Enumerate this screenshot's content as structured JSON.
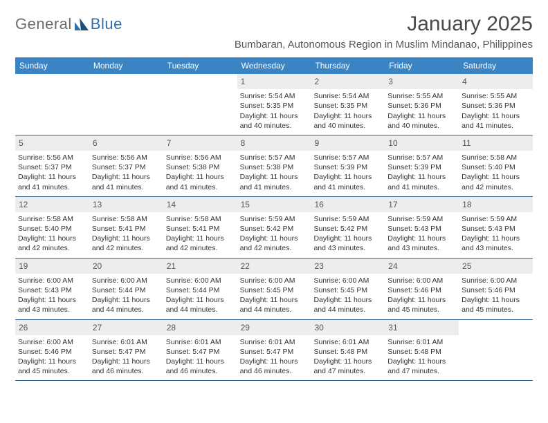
{
  "brand": {
    "general": "General",
    "blue": "Blue"
  },
  "title": "January 2025",
  "location": "Bumbaran, Autonomous Region in Muslim Mindanao, Philippines",
  "colors": {
    "header_bg": "#3a84c4",
    "header_text": "#ffffff",
    "daynum_bg": "#ededed",
    "week_border": "#2f5f8f",
    "logo_gray": "#6b6b6b",
    "logo_blue": "#2f6ea8",
    "text": "#333333"
  },
  "weekdays": [
    "Sunday",
    "Monday",
    "Tuesday",
    "Wednesday",
    "Thursday",
    "Friday",
    "Saturday"
  ],
  "weeks": [
    [
      null,
      null,
      null,
      {
        "n": "1",
        "sr": "Sunrise: 5:54 AM",
        "ss": "Sunset: 5:35 PM",
        "dl": "Daylight: 11 hours and 40 minutes."
      },
      {
        "n": "2",
        "sr": "Sunrise: 5:54 AM",
        "ss": "Sunset: 5:35 PM",
        "dl": "Daylight: 11 hours and 40 minutes."
      },
      {
        "n": "3",
        "sr": "Sunrise: 5:55 AM",
        "ss": "Sunset: 5:36 PM",
        "dl": "Daylight: 11 hours and 40 minutes."
      },
      {
        "n": "4",
        "sr": "Sunrise: 5:55 AM",
        "ss": "Sunset: 5:36 PM",
        "dl": "Daylight: 11 hours and 41 minutes."
      }
    ],
    [
      {
        "n": "5",
        "sr": "Sunrise: 5:56 AM",
        "ss": "Sunset: 5:37 PM",
        "dl": "Daylight: 11 hours and 41 minutes."
      },
      {
        "n": "6",
        "sr": "Sunrise: 5:56 AM",
        "ss": "Sunset: 5:37 PM",
        "dl": "Daylight: 11 hours and 41 minutes."
      },
      {
        "n": "7",
        "sr": "Sunrise: 5:56 AM",
        "ss": "Sunset: 5:38 PM",
        "dl": "Daylight: 11 hours and 41 minutes."
      },
      {
        "n": "8",
        "sr": "Sunrise: 5:57 AM",
        "ss": "Sunset: 5:38 PM",
        "dl": "Daylight: 11 hours and 41 minutes."
      },
      {
        "n": "9",
        "sr": "Sunrise: 5:57 AM",
        "ss": "Sunset: 5:39 PM",
        "dl": "Daylight: 11 hours and 41 minutes."
      },
      {
        "n": "10",
        "sr": "Sunrise: 5:57 AM",
        "ss": "Sunset: 5:39 PM",
        "dl": "Daylight: 11 hours and 41 minutes."
      },
      {
        "n": "11",
        "sr": "Sunrise: 5:58 AM",
        "ss": "Sunset: 5:40 PM",
        "dl": "Daylight: 11 hours and 42 minutes."
      }
    ],
    [
      {
        "n": "12",
        "sr": "Sunrise: 5:58 AM",
        "ss": "Sunset: 5:40 PM",
        "dl": "Daylight: 11 hours and 42 minutes."
      },
      {
        "n": "13",
        "sr": "Sunrise: 5:58 AM",
        "ss": "Sunset: 5:41 PM",
        "dl": "Daylight: 11 hours and 42 minutes."
      },
      {
        "n": "14",
        "sr": "Sunrise: 5:58 AM",
        "ss": "Sunset: 5:41 PM",
        "dl": "Daylight: 11 hours and 42 minutes."
      },
      {
        "n": "15",
        "sr": "Sunrise: 5:59 AM",
        "ss": "Sunset: 5:42 PM",
        "dl": "Daylight: 11 hours and 42 minutes."
      },
      {
        "n": "16",
        "sr": "Sunrise: 5:59 AM",
        "ss": "Sunset: 5:42 PM",
        "dl": "Daylight: 11 hours and 43 minutes."
      },
      {
        "n": "17",
        "sr": "Sunrise: 5:59 AM",
        "ss": "Sunset: 5:43 PM",
        "dl": "Daylight: 11 hours and 43 minutes."
      },
      {
        "n": "18",
        "sr": "Sunrise: 5:59 AM",
        "ss": "Sunset: 5:43 PM",
        "dl": "Daylight: 11 hours and 43 minutes."
      }
    ],
    [
      {
        "n": "19",
        "sr": "Sunrise: 6:00 AM",
        "ss": "Sunset: 5:43 PM",
        "dl": "Daylight: 11 hours and 43 minutes."
      },
      {
        "n": "20",
        "sr": "Sunrise: 6:00 AM",
        "ss": "Sunset: 5:44 PM",
        "dl": "Daylight: 11 hours and 44 minutes."
      },
      {
        "n": "21",
        "sr": "Sunrise: 6:00 AM",
        "ss": "Sunset: 5:44 PM",
        "dl": "Daylight: 11 hours and 44 minutes."
      },
      {
        "n": "22",
        "sr": "Sunrise: 6:00 AM",
        "ss": "Sunset: 5:45 PM",
        "dl": "Daylight: 11 hours and 44 minutes."
      },
      {
        "n": "23",
        "sr": "Sunrise: 6:00 AM",
        "ss": "Sunset: 5:45 PM",
        "dl": "Daylight: 11 hours and 44 minutes."
      },
      {
        "n": "24",
        "sr": "Sunrise: 6:00 AM",
        "ss": "Sunset: 5:46 PM",
        "dl": "Daylight: 11 hours and 45 minutes."
      },
      {
        "n": "25",
        "sr": "Sunrise: 6:00 AM",
        "ss": "Sunset: 5:46 PM",
        "dl": "Daylight: 11 hours and 45 minutes."
      }
    ],
    [
      {
        "n": "26",
        "sr": "Sunrise: 6:00 AM",
        "ss": "Sunset: 5:46 PM",
        "dl": "Daylight: 11 hours and 45 minutes."
      },
      {
        "n": "27",
        "sr": "Sunrise: 6:01 AM",
        "ss": "Sunset: 5:47 PM",
        "dl": "Daylight: 11 hours and 46 minutes."
      },
      {
        "n": "28",
        "sr": "Sunrise: 6:01 AM",
        "ss": "Sunset: 5:47 PM",
        "dl": "Daylight: 11 hours and 46 minutes."
      },
      {
        "n": "29",
        "sr": "Sunrise: 6:01 AM",
        "ss": "Sunset: 5:47 PM",
        "dl": "Daylight: 11 hours and 46 minutes."
      },
      {
        "n": "30",
        "sr": "Sunrise: 6:01 AM",
        "ss": "Sunset: 5:48 PM",
        "dl": "Daylight: 11 hours and 47 minutes."
      },
      {
        "n": "31",
        "sr": "Sunrise: 6:01 AM",
        "ss": "Sunset: 5:48 PM",
        "dl": "Daylight: 11 hours and 47 minutes."
      },
      null
    ]
  ]
}
